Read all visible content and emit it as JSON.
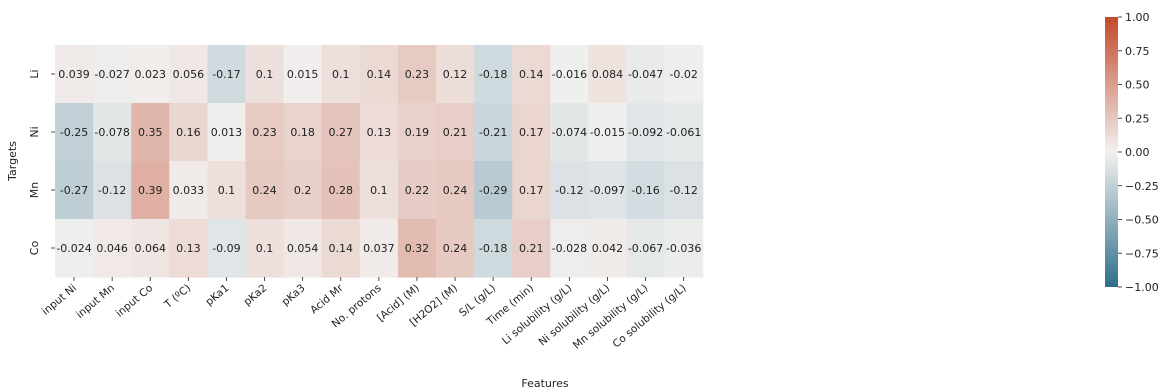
{
  "chart_data": {
    "type": "heatmap",
    "xlabel": "Features",
    "ylabel": "Targets",
    "x_categories": [
      "input Ni",
      "input Mn",
      "input Co",
      "T (ºC)",
      "pKa1",
      "pKa2",
      "pKa3",
      "Acid Mr",
      "No. protons",
      "[Acid] (M)",
      "[H2O2] (M)",
      "S/L (g/L)",
      "Time (min)",
      "Li solubility (g/L)",
      "Ni solubility (g/L)",
      "Mn solubility (g/L)",
      "Co solubility (g/L)"
    ],
    "y_categories": [
      "Li",
      "Ni",
      "Mn",
      "Co"
    ],
    "values": [
      [
        "0.039",
        "-0.027",
        "0.023",
        "0.056",
        "-0.17",
        "0.1",
        "0.015",
        "0.1",
        "0.14",
        "0.23",
        "0.12",
        "-0.18",
        "0.14",
        "-0.016",
        "0.084",
        "-0.047",
        "-0.02"
      ],
      [
        "-0.25",
        "-0.078",
        "0.35",
        "0.16",
        "0.013",
        "0.23",
        "0.18",
        "0.27",
        "0.13",
        "0.19",
        "0.21",
        "-0.21",
        "0.17",
        "-0.074",
        "-0.015",
        "-0.092",
        "-0.061"
      ],
      [
        "-0.27",
        "-0.12",
        "0.39",
        "0.033",
        "0.1",
        "0.24",
        "0.2",
        "0.28",
        "0.1",
        "0.22",
        "0.24",
        "-0.29",
        "0.17",
        "-0.12",
        "-0.097",
        "-0.16",
        "-0.12"
      ],
      [
        "-0.024",
        "0.046",
        "0.064",
        "0.13",
        "-0.09",
        "0.1",
        "0.054",
        "0.14",
        "0.037",
        "0.32",
        "0.24",
        "-0.18",
        "0.21",
        "-0.028",
        "0.042",
        "-0.067",
        "-0.036"
      ]
    ],
    "colorbar": {
      "min": -1.0,
      "max": 1.0,
      "ticks": [
        "1.00",
        "0.75",
        "0.50",
        "0.25",
        "0.00",
        "-0.25",
        "-0.50",
        "-0.75",
        "-1.00"
      ],
      "colors": {
        "negative": "#2f6f8a",
        "neutral": "#f2f1f0",
        "positive": "#c24a2b"
      }
    }
  }
}
